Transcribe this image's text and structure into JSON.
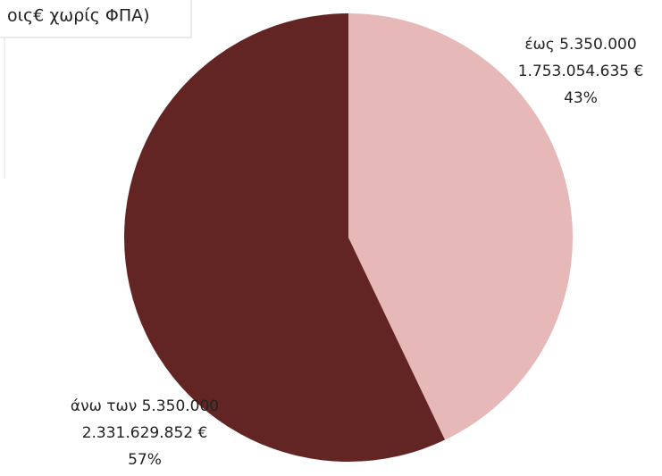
{
  "chart_data": {
    "type": "pie",
    "title": "οις€ χωρίς ΦΠΑ)",
    "categories": [
      "έως 5.350.000",
      "άνω των 5.350.000"
    ],
    "values": [
      1753054635,
      2331629852
    ],
    "value_labels": [
      "1.753.054.635 €",
      "2.331.629.852 €"
    ],
    "percent_labels": [
      "43%",
      "57%"
    ],
    "colors": [
      "#e6b8b7",
      "#632523"
    ]
  }
}
